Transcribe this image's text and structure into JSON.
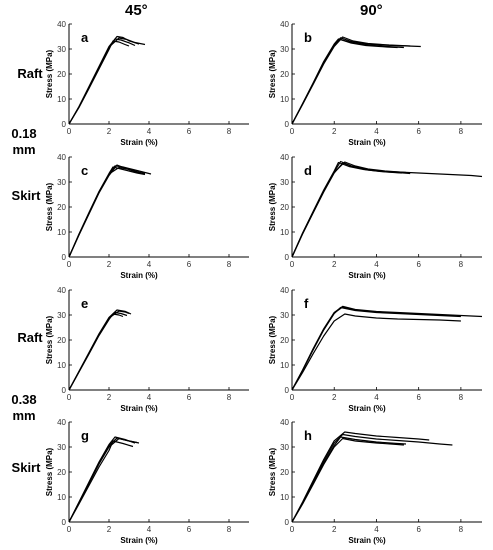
{
  "column_headers": [
    "45°",
    "90°"
  ],
  "row_labels": {
    "raft_1": "Raft",
    "thickness_1": [
      "0.18",
      "mm"
    ],
    "skirt_1": "Skirt",
    "raft_2": "Raft",
    "thickness_2": [
      "0.38",
      "mm"
    ],
    "skirt_2": "Skirt"
  },
  "chart_data": [
    {
      "panel": "a",
      "type": "line",
      "xlabel": "Strain (%)",
      "ylabel": "Stress (MPa)",
      "xlim": [
        0,
        9
      ],
      "ylim": [
        0,
        40
      ],
      "xticks": [
        0,
        2,
        4,
        6,
        8
      ],
      "yticks": [
        0,
        10,
        20,
        30,
        40
      ],
      "series": [
        {
          "x": [
            0,
            0.5,
            1,
            1.5,
            2,
            2.4,
            2.7,
            3.0,
            3.5
          ],
          "y": [
            0,
            7,
            15,
            23,
            31,
            35,
            34.6,
            33.3,
            32
          ]
        },
        {
          "x": [
            0,
            0.5,
            1,
            1.5,
            2,
            2.3,
            2.6,
            3.0,
            3.3
          ],
          "y": [
            0,
            6.8,
            14.6,
            22.4,
            30.4,
            34,
            33.6,
            32.5,
            31.4
          ]
        },
        {
          "x": [
            0,
            0.5,
            1,
            1.5,
            2,
            2.2,
            2.5,
            2.8,
            3.0
          ],
          "y": [
            0,
            6.6,
            14.2,
            22,
            29.8,
            33.2,
            32.8,
            31.8,
            31.2
          ]
        },
        {
          "x": [
            0,
            0.5,
            1,
            1.5,
            2,
            2.5,
            2.9,
            3.3,
            3.8
          ],
          "y": [
            0,
            6.9,
            14.8,
            22.8,
            30.8,
            34.4,
            33.8,
            32.6,
            31.8
          ]
        }
      ]
    },
    {
      "panel": "b",
      "type": "line",
      "xlabel": "Strain (%)",
      "ylabel": "Stress (MPa)",
      "xlim": [
        0,
        9
      ],
      "ylim": [
        0,
        40
      ],
      "xticks": [
        0,
        2,
        4,
        6,
        8
      ],
      "yticks": [
        0,
        10,
        20,
        30,
        40
      ],
      "series": [
        {
          "x": [
            0,
            0.5,
            1,
            1.5,
            2,
            2.3,
            2.8,
            3.5,
            4.5,
            5.5,
            6.1
          ],
          "y": [
            0,
            8,
            16,
            24.5,
            31.5,
            34.5,
            33,
            32,
            31.5,
            31.2,
            31
          ]
        },
        {
          "x": [
            0,
            0.5,
            1,
            1.5,
            2,
            2.2,
            2.8,
            3.5,
            4.5,
            5.3
          ],
          "y": [
            0,
            8.2,
            16.4,
            25,
            32,
            34,
            32.6,
            31.6,
            31,
            30.6
          ]
        },
        {
          "x": [
            0,
            0.5,
            1,
            1.5,
            2,
            2.3,
            2.8,
            3.5,
            4.5,
            5.0
          ],
          "y": [
            0,
            7.8,
            15.8,
            24,
            31,
            33.8,
            32.4,
            31.4,
            30.8,
            30.6
          ]
        },
        {
          "x": [
            0,
            0.5,
            1,
            1.5,
            2,
            2.4,
            2.9,
            3.6,
            4.6,
            5.6
          ],
          "y": [
            0,
            8,
            16.2,
            24.6,
            31.8,
            34.8,
            33.2,
            32.2,
            31.6,
            31.2
          ]
        }
      ]
    },
    {
      "panel": "c",
      "type": "line",
      "xlabel": "Strain (%)",
      "ylabel": "Stress (MPa)",
      "xlim": [
        0,
        9
      ],
      "ylim": [
        0,
        40
      ],
      "xticks": [
        0,
        2,
        4,
        6,
        8
      ],
      "yticks": [
        0,
        10,
        20,
        30,
        40
      ],
      "series": [
        {
          "x": [
            0,
            0.5,
            1,
            1.5,
            2,
            2.3,
            2.7,
            3.2,
            3.7,
            4.1
          ],
          "y": [
            0,
            9,
            17.5,
            26,
            33,
            36.5,
            36,
            35,
            34,
            33.2
          ]
        },
        {
          "x": [
            0,
            0.5,
            1,
            1.5,
            2,
            2.4,
            2.8,
            3.2,
            3.6
          ],
          "y": [
            0,
            8.8,
            17.2,
            25.6,
            32.6,
            36.8,
            35.6,
            34.6,
            33.6
          ]
        },
        {
          "x": [
            0,
            0.5,
            1,
            1.5,
            2,
            2.2,
            2.6,
            3.0,
            3.4,
            3.8
          ],
          "y": [
            0,
            9.2,
            17.8,
            26.2,
            33.4,
            36,
            35.2,
            34.4,
            33.6,
            33
          ]
        },
        {
          "x": [
            0,
            0.5,
            1,
            1.5,
            2,
            2.5,
            2.9,
            3.3,
            3.8
          ],
          "y": [
            0,
            9,
            17.6,
            26,
            33.2,
            35.8,
            35.2,
            34.2,
            33.4
          ]
        }
      ]
    },
    {
      "panel": "d",
      "type": "line",
      "xlabel": "Strain (%)",
      "ylabel": "Stress (MPa)",
      "xlim": [
        0,
        9
      ],
      "ylim": [
        0,
        40
      ],
      "xticks": [
        0,
        2,
        4,
        6,
        8
      ],
      "yticks": [
        0,
        10,
        20,
        30,
        40
      ],
      "series": [
        {
          "x": [
            0,
            0.5,
            1,
            1.5,
            2,
            2.3,
            2.8,
            3.5,
            4.5,
            5.5,
            6.5,
            7.5,
            8.5,
            9.0
          ],
          "y": [
            0,
            9.5,
            18,
            26.5,
            34,
            38.2,
            36.5,
            35,
            34.2,
            33.8,
            33.4,
            33,
            32.6,
            32.2
          ]
        },
        {
          "x": [
            0,
            0.5,
            1,
            1.5,
            2,
            2.4,
            2.9,
            3.6,
            4.5,
            5.2
          ],
          "y": [
            0,
            9.2,
            17.6,
            26,
            33.6,
            37.6,
            36,
            34.8,
            34,
            33.6
          ]
        },
        {
          "x": [
            0,
            0.5,
            1,
            1.5,
            2,
            2.2,
            2.7,
            3.4,
            4.2,
            5.0,
            5.6
          ],
          "y": [
            0,
            9.6,
            18.2,
            26.8,
            34.4,
            37.8,
            36.2,
            35,
            34.2,
            33.8,
            33.4
          ]
        },
        {
          "x": [
            0,
            0.5,
            1,
            1.5,
            2,
            2.5,
            3.0,
            3.6,
            4.4,
            5.4
          ],
          "y": [
            0,
            9.4,
            17.8,
            26.2,
            33.8,
            38,
            36.4,
            35.2,
            34.4,
            33.8
          ]
        }
      ]
    },
    {
      "panel": "e",
      "type": "line",
      "xlabel": "Strain (%)",
      "ylabel": "Stress (MPa)",
      "xlim": [
        0,
        9
      ],
      "ylim": [
        0,
        40
      ],
      "xticks": [
        0,
        2,
        4,
        6,
        8
      ],
      "yticks": [
        0,
        10,
        20,
        30,
        40
      ],
      "series": [
        {
          "x": [
            0,
            0.5,
            1,
            1.5,
            2,
            2.4,
            2.8,
            3.1
          ],
          "y": [
            0,
            7.5,
            15,
            22.5,
            29,
            32,
            31.5,
            30.4
          ]
        },
        {
          "x": [
            0,
            0.5,
            1,
            1.5,
            2,
            2.3,
            2.6,
            2.9
          ],
          "y": [
            0,
            7.3,
            14.6,
            22,
            28.5,
            31,
            30.6,
            29.8
          ]
        },
        {
          "x": [
            0,
            0.5,
            1,
            1.5,
            2,
            2.5,
            2.8,
            3.0
          ],
          "y": [
            0,
            7.4,
            14.8,
            22.2,
            28.8,
            31.6,
            31.2,
            30.6
          ]
        },
        {
          "x": [
            0,
            0.5,
            1,
            1.5,
            2,
            2.2,
            2.5,
            2.7
          ],
          "y": [
            0,
            7.2,
            14.4,
            21.8,
            28.2,
            30.4,
            30,
            29.4
          ]
        }
      ]
    },
    {
      "panel": "f",
      "type": "line",
      "xlabel": "Strain (%)",
      "ylabel": "Stress (MPa)",
      "xlim": [
        0,
        9
      ],
      "ylim": [
        0,
        40
      ],
      "xticks": [
        0,
        2,
        4,
        6,
        8
      ],
      "yticks": [
        0,
        10,
        20,
        30,
        40
      ],
      "series": [
        {
          "x": [
            0,
            0.5,
            1,
            1.5,
            2,
            2.4,
            3.0,
            4.0,
            5.0,
            6.0,
            7.0,
            8.0,
            9.0
          ],
          "y": [
            0,
            8,
            16.5,
            24.5,
            31,
            33.5,
            32.2,
            31.4,
            31,
            30.6,
            30.2,
            29.8,
            29.4
          ]
        },
        {
          "x": [
            0,
            0.5,
            1,
            1.5,
            2,
            2.3,
            3.0,
            4.0,
            5.0,
            6.0,
            7.0,
            8.0
          ],
          "y": [
            0,
            7.8,
            16,
            24,
            30.6,
            33,
            31.8,
            31,
            30.6,
            30.2,
            29.8,
            29.4
          ]
        },
        {
          "x": [
            0,
            0.5,
            1,
            1.5,
            2,
            2.5,
            3.0,
            4.0,
            5.0,
            6.0,
            7.0,
            8.0
          ],
          "y": [
            0,
            7,
            14.5,
            21.6,
            27.6,
            30.4,
            29.6,
            28.8,
            28.4,
            28.2,
            28,
            27.6
          ]
        },
        {
          "x": [
            0,
            0.5,
            1,
            1.5,
            2,
            2.4,
            3.0,
            4.0,
            5.0,
            6.0,
            7.0,
            7.6
          ],
          "y": [
            0,
            7.9,
            16.2,
            24.2,
            30.8,
            33.2,
            32,
            31.2,
            30.8,
            30.4,
            30,
            29.8
          ]
        }
      ]
    },
    {
      "panel": "g",
      "type": "line",
      "xlabel": "Strain (%)",
      "ylabel": "Stress (MPa)",
      "xlim": [
        0,
        9
      ],
      "ylim": [
        0,
        40
      ],
      "xticks": [
        0,
        2,
        4,
        6,
        8
      ],
      "yticks": [
        0,
        10,
        20,
        30,
        40
      ],
      "series": [
        {
          "x": [
            0,
            0.5,
            1,
            1.5,
            2,
            2.3,
            2.8,
            3.3
          ],
          "y": [
            0,
            8,
            16,
            24,
            31,
            34,
            33,
            31.6
          ]
        },
        {
          "x": [
            0,
            0.5,
            1,
            1.5,
            2,
            2.5,
            3.0,
            3.5
          ],
          "y": [
            0,
            7.6,
            15.4,
            23.2,
            30,
            33.4,
            32.4,
            31.6
          ]
        },
        {
          "x": [
            0,
            0.5,
            1,
            1.5,
            2,
            2.2,
            2.7,
            3.2
          ],
          "y": [
            0,
            7.2,
            14.6,
            22,
            28.6,
            32.4,
            31.4,
            30.2
          ]
        },
        {
          "x": [
            0,
            0.5,
            1,
            1.5,
            2,
            2.4,
            2.9,
            3.4
          ],
          "y": [
            0,
            7.8,
            15.6,
            23.6,
            30.6,
            33.6,
            32.6,
            31.8
          ]
        }
      ]
    },
    {
      "panel": "h",
      "type": "line",
      "xlabel": "Strain (%)",
      "ylabel": "Stress (MPa)",
      "xlim": [
        0,
        9
      ],
      "ylim": [
        0,
        40
      ],
      "xticks": [
        0,
        2,
        4,
        6,
        8
      ],
      "yticks": [
        0,
        10,
        20,
        30,
        40
      ],
      "series": [
        {
          "x": [
            0,
            0.5,
            1,
            1.5,
            2,
            2.5,
            3.0,
            4.0,
            5.0,
            6.0,
            6.5
          ],
          "y": [
            0,
            8,
            16.5,
            25,
            32.5,
            36,
            35.4,
            34.4,
            33.8,
            33.2,
            32.8
          ]
        },
        {
          "x": [
            0,
            0.5,
            1,
            1.5,
            2,
            2.4,
            3.0,
            4.0,
            5.0,
            6.0,
            7.0,
            7.6
          ],
          "y": [
            0,
            7.6,
            16,
            24.2,
            31.6,
            35,
            34.2,
            33.2,
            32.6,
            32,
            31.2,
            30.8
          ]
        },
        {
          "x": [
            0,
            0.5,
            1,
            1.5,
            2,
            2.3,
            3.0,
            4.0,
            5.0,
            5.4
          ],
          "y": [
            0,
            7.4,
            15.4,
            23.4,
            30.6,
            34,
            33,
            32,
            31.4,
            31.2
          ]
        },
        {
          "x": [
            0,
            0.5,
            1,
            1.5,
            2,
            2.4,
            3.0,
            4.0,
            5.0,
            5.3
          ],
          "y": [
            0,
            7.2,
            15,
            23,
            30,
            33.4,
            32.4,
            31.6,
            31,
            30.8
          ]
        }
      ]
    }
  ]
}
